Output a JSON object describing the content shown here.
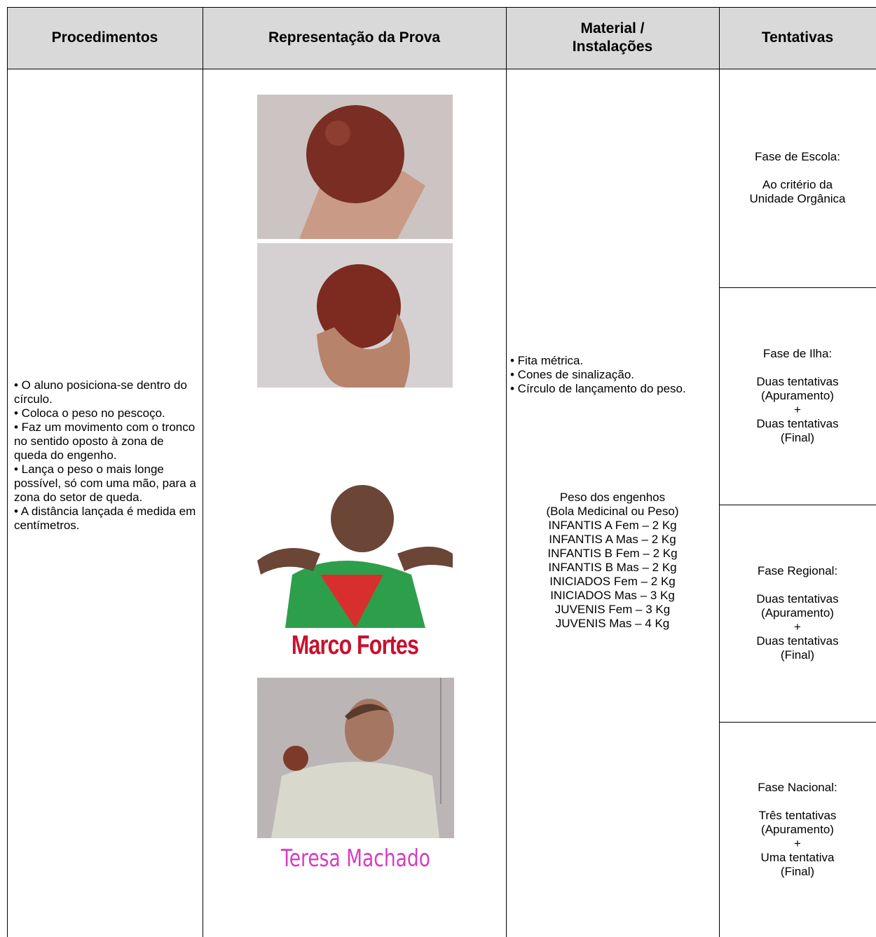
{
  "table": {
    "headers": [
      "Procedimentos",
      "Representação da Prova",
      [
        "Material /",
        "Instalações"
      ],
      "Tentativas"
    ],
    "procedures": [
      "• O aluno posiciona-se dentro do círculo.",
      "• Coloca o peso no pescoço.",
      "• Faz um movimento com o tronco no sentido oposto à zona de queda do engenho.",
      "• Lança o peso o mais longe possível, só com uma mão, para a zona do setor de queda.",
      "• A distância lançada é medida em centímetros."
    ],
    "material": {
      "items": [
        "• Fita métrica.",
        "• Cones de sinalização.",
        "• Círculo de lançamento do peso."
      ],
      "weights": [
        "Peso dos engenhos",
        "(Bola Medicinal ou Peso)",
        "INFANTIS A Fem – 2 Kg",
        "INFANTIS A Mas – 2 Kg",
        "INFANTIS B Fem – 2 Kg",
        "INFANTIS B Mas – 2 Kg",
        "INICIADOS Fem – 2 Kg",
        "INICIADOS Mas – 3 Kg",
        "JUVENIS Fem – 3 Kg",
        "JUVENIS Mas – 4 Kg"
      ]
    },
    "attempts": [
      {
        "phase": "Fase de Escola:",
        "lines": [
          "Ao critério da",
          "Unidade Orgânica"
        ]
      },
      {
        "phase": "Fase de Ilha:",
        "lines": [
          "Duas tentativas",
          "(Apuramento)",
          "+",
          "Duas tentativas",
          "(Final)"
        ]
      },
      {
        "phase": "Fase Regional:",
        "lines": [
          "Duas tentativas",
          "(Apuramento)",
          "+",
          "Duas tentativas",
          "(Final)"
        ]
      },
      {
        "phase": "Fase Nacional:",
        "lines": [
          "Três tentativas",
          "(Apuramento)",
          "+",
          "Uma tentativa",
          "(Final)"
        ]
      }
    ],
    "captions": [
      "Marco Fortes",
      "Teresa Machado"
    ]
  }
}
